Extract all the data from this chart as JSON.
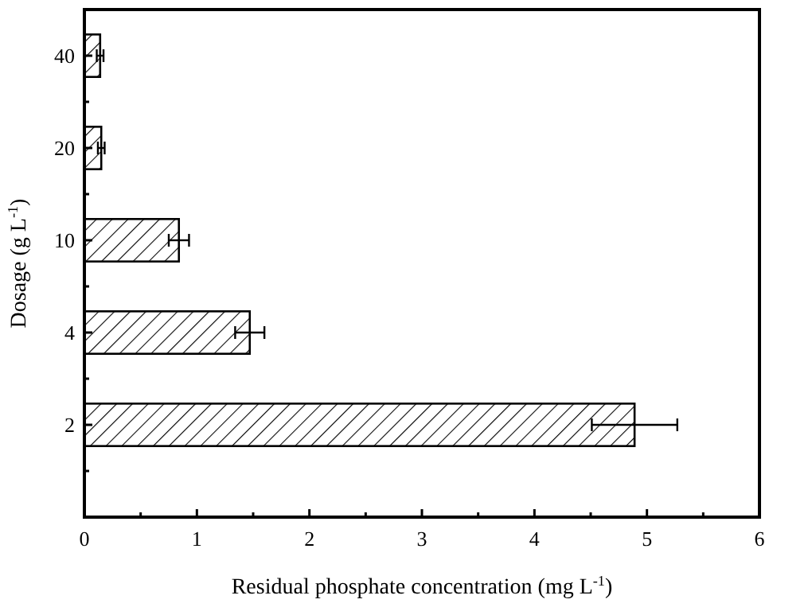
{
  "chart_data": {
    "type": "bar",
    "orientation": "horizontal",
    "xlabel": "Residual phosphate concentration (mg L$^{-1}$)",
    "ylabel": "Dosage (g L$^{-1}$)",
    "categories": [
      "40",
      "20",
      "10",
      "4",
      "2"
    ],
    "values": [
      0.14,
      0.15,
      0.84,
      1.47,
      4.89
    ],
    "errors": [
      0.03,
      0.03,
      0.09,
      0.13,
      0.38
    ],
    "color": "#000000",
    "xlim": [
      0,
      6
    ],
    "xticks": [
      0,
      {
        "value": 0.5,
        "label": null
      },
      1,
      {
        "value": 1.5,
        "label": null
      },
      2,
      {
        "value": 2.5,
        "label": null
      },
      3,
      {
        "value": 3.5,
        "label": null
      },
      4,
      {
        "value": 4.5,
        "label": null
      },
      5,
      {
        "value": 5.5,
        "label": null
      },
      6
    ]
  }
}
